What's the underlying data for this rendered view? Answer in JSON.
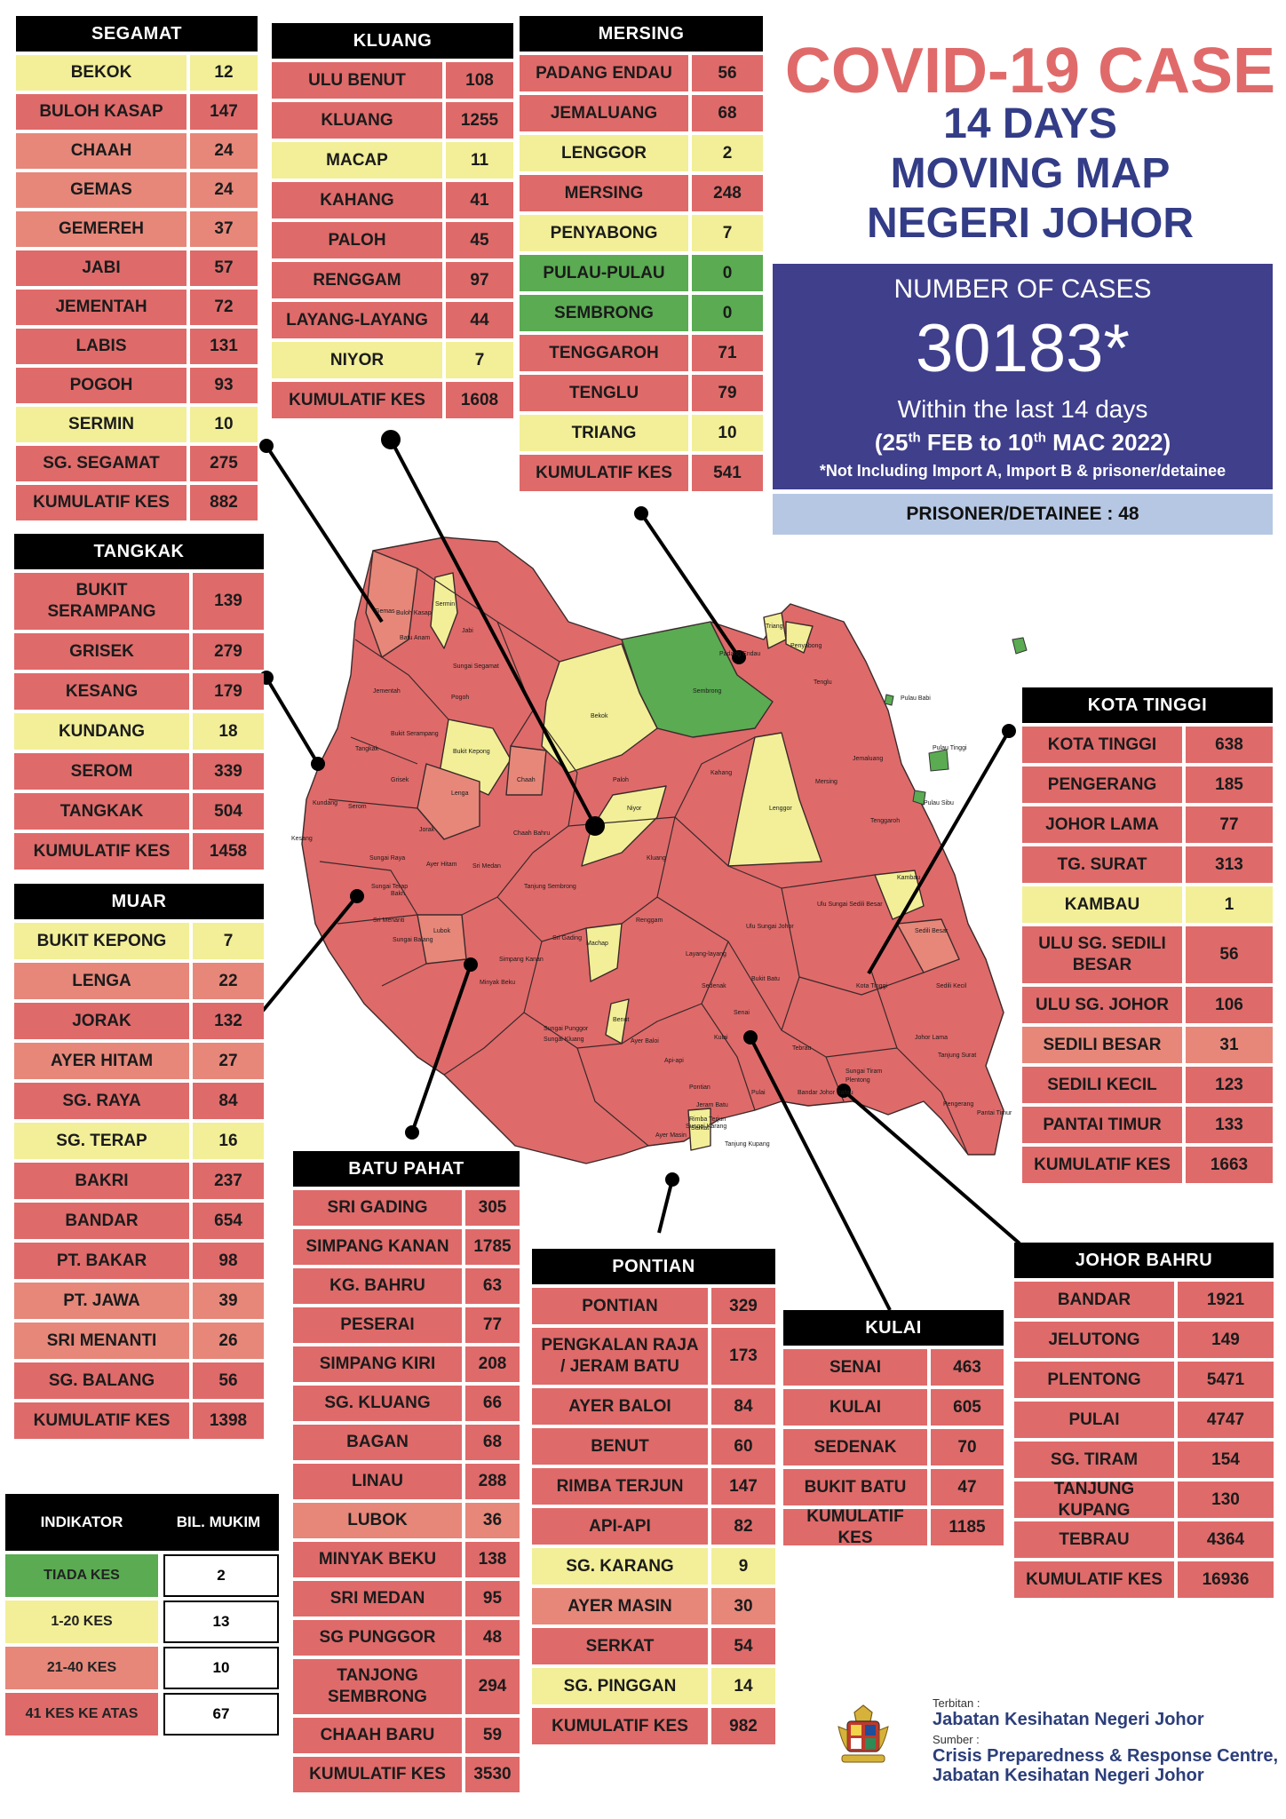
{
  "title": {
    "line1": "COVID-19 CASE",
    "line2": "14 DAYS",
    "line3": "MOVING MAP",
    "line4": "NEGERI JOHOR"
  },
  "summary": {
    "label": "NUMBER OF CASES",
    "count": "30183*",
    "window": "Within the last 14 days",
    "dates": "(25th FEB to 10th MAC 2022)",
    "note": "*Not Including Import A, Import B & prisoner/detainee",
    "prisoner": "PRISONER/DETAINEE : 48"
  },
  "colors": {
    "tiada": "#5aab52",
    "low": "#f2ef98",
    "mid": "#e6877a",
    "high": "#df6a6a",
    "header": "#000000"
  },
  "legend": {
    "col1": "INDIKATOR",
    "col2": "BIL. MUKIM",
    "rows": [
      {
        "label": "TIADA KES",
        "count": "2",
        "level": "tiada"
      },
      {
        "label": "1-20 KES",
        "count": "13",
        "level": "low"
      },
      {
        "label": "21-40 KES",
        "count": "10",
        "level": "mid"
      },
      {
        "label": "41 KES KE ATAS",
        "count": "67",
        "level": "high"
      }
    ]
  },
  "districts": [
    {
      "id": "segamat",
      "name": "SEGAMAT",
      "rows": [
        {
          "n": "BEKOK",
          "v": "12",
          "level": "low"
        },
        {
          "n": "BULOH KASAP",
          "v": "147",
          "level": "high"
        },
        {
          "n": "CHAAH",
          "v": "24",
          "level": "mid"
        },
        {
          "n": "GEMAS",
          "v": "24",
          "level": "mid"
        },
        {
          "n": "GEMEREH",
          "v": "37",
          "level": "mid"
        },
        {
          "n": "JABI",
          "v": "57",
          "level": "high"
        },
        {
          "n": "JEMENTAH",
          "v": "72",
          "level": "high"
        },
        {
          "n": "LABIS",
          "v": "131",
          "level": "high"
        },
        {
          "n": "POGOH",
          "v": "93",
          "level": "high"
        },
        {
          "n": "SERMIN",
          "v": "10",
          "level": "low"
        },
        {
          "n": "SG. SEGAMAT",
          "v": "275",
          "level": "high"
        },
        {
          "n": "KUMULATIF KES",
          "v": "882",
          "level": "high"
        }
      ]
    },
    {
      "id": "kluang",
      "name": "KLUANG",
      "rows": [
        {
          "n": "ULU BENUT",
          "v": "108",
          "level": "high"
        },
        {
          "n": "KLUANG",
          "v": "1255",
          "level": "high"
        },
        {
          "n": "MACAP",
          "v": "11",
          "level": "low"
        },
        {
          "n": "KAHANG",
          "v": "41",
          "level": "high"
        },
        {
          "n": "PALOH",
          "v": "45",
          "level": "high"
        },
        {
          "n": "RENGGAM",
          "v": "97",
          "level": "high"
        },
        {
          "n": "LAYANG-LAYANG",
          "v": "44",
          "level": "high"
        },
        {
          "n": "NIYOR",
          "v": "7",
          "level": "low"
        },
        {
          "n": "KUMULATIF KES",
          "v": "1608",
          "level": "high"
        }
      ]
    },
    {
      "id": "mersing",
      "name": "MERSING",
      "rows": [
        {
          "n": "PADANG ENDAU",
          "v": "56",
          "level": "high"
        },
        {
          "n": "JEMALUANG",
          "v": "68",
          "level": "high"
        },
        {
          "n": "LENGGOR",
          "v": "2",
          "level": "low"
        },
        {
          "n": "MERSING",
          "v": "248",
          "level": "high"
        },
        {
          "n": "PENYABONG",
          "v": "7",
          "level": "low"
        },
        {
          "n": "PULAU-PULAU",
          "v": "0",
          "level": "tiada"
        },
        {
          "n": "SEMBRONG",
          "v": "0",
          "level": "tiada"
        },
        {
          "n": "TENGGAROH",
          "v": "71",
          "level": "high"
        },
        {
          "n": "TENGLU",
          "v": "79",
          "level": "high"
        },
        {
          "n": "TRIANG",
          "v": "10",
          "level": "low"
        },
        {
          "n": "KUMULATIF KES",
          "v": "541",
          "level": "high"
        }
      ]
    },
    {
      "id": "tangkak",
      "name": "TANGKAK",
      "rows": [
        {
          "n": "BUKIT SERAMPANG",
          "v": "139",
          "level": "high"
        },
        {
          "n": "GRISEK",
          "v": "279",
          "level": "high"
        },
        {
          "n": "KESANG",
          "v": "179",
          "level": "high"
        },
        {
          "n": "KUNDANG",
          "v": "18",
          "level": "low"
        },
        {
          "n": "SEROM",
          "v": "339",
          "level": "high"
        },
        {
          "n": "TANGKAK",
          "v": "504",
          "level": "high"
        },
        {
          "n": "KUMULATIF KES",
          "v": "1458",
          "level": "high"
        }
      ]
    },
    {
      "id": "muar",
      "name": "MUAR",
      "rows": [
        {
          "n": "BUKIT KEPONG",
          "v": "7",
          "level": "low"
        },
        {
          "n": "LENGA",
          "v": "22",
          "level": "mid"
        },
        {
          "n": "JORAK",
          "v": "132",
          "level": "high"
        },
        {
          "n": "AYER HITAM",
          "v": "27",
          "level": "mid"
        },
        {
          "n": "SG. RAYA",
          "v": "84",
          "level": "high"
        },
        {
          "n": "SG. TERAP",
          "v": "16",
          "level": "low"
        },
        {
          "n": "BAKRI",
          "v": "237",
          "level": "high"
        },
        {
          "n": "BANDAR",
          "v": "654",
          "level": "high"
        },
        {
          "n": "PT. BAKAR",
          "v": "98",
          "level": "high"
        },
        {
          "n": "PT. JAWA",
          "v": "39",
          "level": "mid"
        },
        {
          "n": "SRI MENANTI",
          "v": "26",
          "level": "mid"
        },
        {
          "n": "SG. BALANG",
          "v": "56",
          "level": "high"
        },
        {
          "n": "KUMULATIF KES",
          "v": "1398",
          "level": "high"
        }
      ]
    },
    {
      "id": "batu-pahat",
      "name": "BATU PAHAT",
      "rows": [
        {
          "n": "SRI GADING",
          "v": "305",
          "level": "high"
        },
        {
          "n": "SIMPANG KANAN",
          "v": "1785",
          "level": "high"
        },
        {
          "n": "KG. BAHRU",
          "v": "63",
          "level": "high"
        },
        {
          "n": "PESERAI",
          "v": "77",
          "level": "high"
        },
        {
          "n": "SIMPANG KIRI",
          "v": "208",
          "level": "high"
        },
        {
          "n": "SG. KLUANG",
          "v": "66",
          "level": "high"
        },
        {
          "n": "BAGAN",
          "v": "68",
          "level": "high"
        },
        {
          "n": "LINAU",
          "v": "288",
          "level": "high"
        },
        {
          "n": "LUBOK",
          "v": "36",
          "level": "mid"
        },
        {
          "n": "MINYAK BEKU",
          "v": "138",
          "level": "high"
        },
        {
          "n": "SRI MEDAN",
          "v": "95",
          "level": "high"
        },
        {
          "n": "SG PUNGGOR",
          "v": "48",
          "level": "high"
        },
        {
          "n": "TANJONG SEMBRONG",
          "v": "294",
          "level": "high"
        },
        {
          "n": "CHAAH BARU",
          "v": "59",
          "level": "high"
        },
        {
          "n": "KUMULATIF KES",
          "v": "3530",
          "level": "high"
        }
      ]
    },
    {
      "id": "pontian",
      "name": "PONTIAN",
      "rows": [
        {
          "n": "PONTIAN",
          "v": "329",
          "level": "high"
        },
        {
          "n": "PENGKALAN RAJA / JERAM BATU",
          "v": "173",
          "level": "high"
        },
        {
          "n": "AYER BALOI",
          "v": "84",
          "level": "high"
        },
        {
          "n": "BENUT",
          "v": "60",
          "level": "high"
        },
        {
          "n": "RIMBA TERJUN",
          "v": "147",
          "level": "high"
        },
        {
          "n": "API-API",
          "v": "82",
          "level": "high"
        },
        {
          "n": "SG. KARANG",
          "v": "9",
          "level": "low"
        },
        {
          "n": "AYER MASIN",
          "v": "30",
          "level": "mid"
        },
        {
          "n": "SERKAT",
          "v": "54",
          "level": "high"
        },
        {
          "n": "SG. PINGGAN",
          "v": "14",
          "level": "low"
        },
        {
          "n": "KUMULATIF KES",
          "v": "982",
          "level": "high"
        }
      ]
    },
    {
      "id": "kulai",
      "name": "KULAI",
      "rows": [
        {
          "n": "SENAI",
          "v": "463",
          "level": "high"
        },
        {
          "n": "KULAI",
          "v": "605",
          "level": "high"
        },
        {
          "n": "SEDENAK",
          "v": "70",
          "level": "high"
        },
        {
          "n": "BUKIT BATU",
          "v": "47",
          "level": "high"
        },
        {
          "n": "KUMULATIF KES",
          "v": "1185",
          "level": "high"
        }
      ]
    },
    {
      "id": "kota-tinggi",
      "name": "KOTA TINGGI",
      "rows": [
        {
          "n": "KOTA TINGGI",
          "v": "638",
          "level": "high"
        },
        {
          "n": "PENGERANG",
          "v": "185",
          "level": "high"
        },
        {
          "n": "JOHOR LAMA",
          "v": "77",
          "level": "high"
        },
        {
          "n": "TG. SURAT",
          "v": "313",
          "level": "high"
        },
        {
          "n": "KAMBAU",
          "v": "1",
          "level": "low"
        },
        {
          "n": "ULU SG. SEDILI BESAR",
          "v": "56",
          "level": "high"
        },
        {
          "n": "ULU SG. JOHOR",
          "v": "106",
          "level": "high"
        },
        {
          "n": "SEDILI BESAR",
          "v": "31",
          "level": "mid"
        },
        {
          "n": "SEDILI KECIL",
          "v": "123",
          "level": "high"
        },
        {
          "n": "PANTAI TIMUR",
          "v": "133",
          "level": "high"
        },
        {
          "n": "KUMULATIF KES",
          "v": "1663",
          "level": "high"
        }
      ]
    },
    {
      "id": "johor-bahru",
      "name": "JOHOR BAHRU",
      "rows": [
        {
          "n": "BANDAR",
          "v": "1921",
          "level": "high"
        },
        {
          "n": "JELUTONG",
          "v": "149",
          "level": "high"
        },
        {
          "n": "PLENTONG",
          "v": "5471",
          "level": "high"
        },
        {
          "n": "PULAI",
          "v": "4747",
          "level": "high"
        },
        {
          "n": "SG. TIRAM",
          "v": "154",
          "level": "high"
        },
        {
          "n": "TANJUNG KUPANG",
          "v": "130",
          "level": "high"
        },
        {
          "n": "TEBRAU",
          "v": "4364",
          "level": "high"
        },
        {
          "n": "KUMULATIF KES",
          "v": "16936",
          "level": "high"
        }
      ]
    }
  ],
  "map_labels": [
    {
      "t": "Gemas"
    },
    {
      "t": "Buloh Kasap"
    },
    {
      "t": "Sermin"
    },
    {
      "t": "Batu Anam"
    },
    {
      "t": "Jabi"
    },
    {
      "t": "Sungai Segamat"
    },
    {
      "t": "Jementah"
    },
    {
      "t": "Pogoh"
    },
    {
      "t": "Bukit Serampang"
    },
    {
      "t": "Tangkak"
    },
    {
      "t": "Bukit Kepong"
    },
    {
      "t": "Lenga"
    },
    {
      "t": "Chaah"
    },
    {
      "t": "Bekok"
    },
    {
      "t": "Sembrong"
    },
    {
      "t": "Paloh"
    },
    {
      "t": "Niyor"
    },
    {
      "t": "Kahang"
    },
    {
      "t": "Lenggor"
    },
    {
      "t": "Mersing"
    },
    {
      "t": "Jemaluang"
    },
    {
      "t": "Tenggaroh"
    },
    {
      "t": "Triang"
    },
    {
      "t": "Penyabong"
    },
    {
      "t": "Tenglu"
    },
    {
      "t": "Padang Endau"
    },
    {
      "t": "Pulau Babi"
    },
    {
      "t": "Pulau Tinggi"
    },
    {
      "t": "Pulau Sibu"
    },
    {
      "t": "Grisek"
    },
    {
      "t": "Serom"
    },
    {
      "t": "Kundang"
    },
    {
      "t": "Kesang"
    },
    {
      "t": "Jorak"
    },
    {
      "t": "Chaah Bahru"
    },
    {
      "t": "Kluang"
    },
    {
      "t": "Ayer Hitam"
    },
    {
      "t": "Sri Medan"
    },
    {
      "t": "Tanjung Sembrong"
    },
    {
      "t": "Renggam"
    },
    {
      "t": "Ulu Sungai Johor"
    },
    {
      "t": "Ulu Sungai Sedili Besar"
    },
    {
      "t": "Kambau"
    },
    {
      "t": "Sedili Besar"
    },
    {
      "t": "Sedili Kecil"
    },
    {
      "t": "Kota Tinggi"
    },
    {
      "t": "Johor Lama"
    },
    {
      "t": "Tanjung Surat"
    },
    {
      "t": "Pengerang"
    },
    {
      "t": "Pantai Timur"
    },
    {
      "t": "Layang-layang"
    },
    {
      "t": "Machap"
    },
    {
      "t": "Sri Gading"
    },
    {
      "t": "Simpang Kanan"
    },
    {
      "t": "Minyak Beku"
    },
    {
      "t": "Sedenak"
    },
    {
      "t": "Senai"
    },
    {
      "t": "Kulai"
    },
    {
      "t": "Tebrau"
    },
    {
      "t": "Sungai Tiram"
    },
    {
      "t": "Plentong"
    },
    {
      "t": "Bandar Johor Bahru"
    },
    {
      "t": "Pulai"
    },
    {
      "t": "Tanjung Kupang"
    },
    {
      "t": "Pontian"
    },
    {
      "t": "Jeram Batu"
    },
    {
      "t": "Rimba Terjun"
    },
    {
      "t": "Ayer Masin"
    },
    {
      "t": "Serkat"
    },
    {
      "t": "Sungai Karang"
    },
    {
      "t": "Benut"
    },
    {
      "t": "Ayer Baloi"
    },
    {
      "t": "Api-api"
    },
    {
      "t": "Sungai Punggor"
    },
    {
      "t": "Sungai Kluang"
    },
    {
      "t": "Lubok"
    },
    {
      "t": "Bakri"
    },
    {
      "t": "Sungai Balang"
    },
    {
      "t": "Sri Menanti"
    },
    {
      "t": "Sungai Terap"
    },
    {
      "t": "Sungai Raya"
    },
    {
      "t": "Bukit Batu"
    }
  ],
  "footer": {
    "terbitan": "Terbitan :",
    "publisher": "Jabatan Kesihatan Negeri Johor",
    "sumber": "Sumber :",
    "source1": "Crisis Preparedness & Response Centre,",
    "source2": "Jabatan Kesihatan Negeri Johor"
  }
}
